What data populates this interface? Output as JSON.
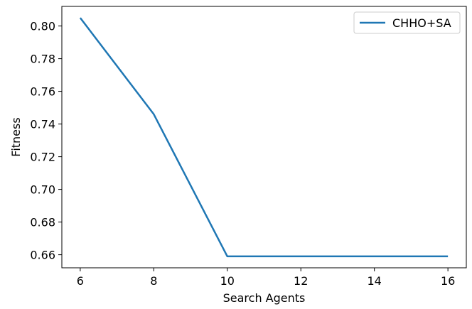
{
  "chart_data": {
    "type": "line",
    "x": [
      6,
      8,
      10,
      12,
      14,
      16
    ],
    "series": [
      {
        "name": "CHHO+SA",
        "values": [
          0.805,
          0.746,
          0.659,
          0.659,
          0.659,
          0.659
        ],
        "color": "#1f77b4"
      }
    ],
    "xlabel": "Search Agents",
    "ylabel": "Fitness",
    "xlim": [
      5.5,
      16.5
    ],
    "ylim": [
      0.652,
      0.812
    ],
    "xticks": [
      6,
      8,
      10,
      12,
      14,
      16
    ],
    "xtick_labels": [
      "6",
      "8",
      "10",
      "12",
      "14",
      "16"
    ],
    "yticks": [
      0.66,
      0.68,
      0.7,
      0.72,
      0.74,
      0.76,
      0.78,
      0.8
    ],
    "ytick_labels": [
      "0.66",
      "0.68",
      "0.70",
      "0.72",
      "0.74",
      "0.76",
      "0.78",
      "0.80"
    ],
    "grid": false,
    "legend_position": "top-right"
  }
}
